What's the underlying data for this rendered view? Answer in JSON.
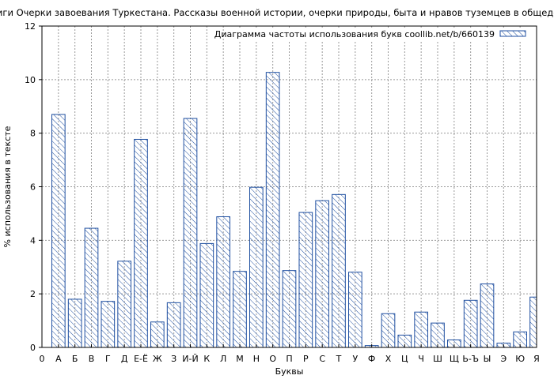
{
  "chart_data": {
    "type": "bar",
    "title": "Анализ текста книги Очерки завоевания Туркестана. Рассказы военной истории, очерки природы, быта и нравов туземцев в общедоступном изложении (Констант",
    "xlabel": "Буквы",
    "ylabel": "% использования в тексте",
    "ylim": [
      0,
      12
    ],
    "yticks": [
      "0",
      "2",
      "4",
      "6",
      "8",
      "10",
      "12"
    ],
    "x_origin_label": "0",
    "categories": [
      "А",
      "Б",
      "В",
      "Г",
      "Д",
      "Е-Ё",
      "Ж",
      "З",
      "И-Й",
      "К",
      "Л",
      "М",
      "Н",
      "О",
      "П",
      "Р",
      "С",
      "Т",
      "У",
      "Ф",
      "Х",
      "Ц",
      "Ч",
      "Ш",
      "Щ",
      "Ь-Ъ",
      "Ы",
      "Э",
      "Ю",
      "Я"
    ],
    "values": [
      8.7,
      1.8,
      4.45,
      1.72,
      3.22,
      7.77,
      0.95,
      1.67,
      8.55,
      3.88,
      4.88,
      2.84,
      5.98,
      10.27,
      2.87,
      5.04,
      5.48,
      5.71,
      2.81,
      0.07,
      1.26,
      0.46,
      1.32,
      0.91,
      0.28,
      1.76,
      2.37,
      0.16,
      0.58,
      1.88
    ],
    "grid": true,
    "legend": {
      "position": "top-right",
      "label": "Диаграмма частоты использования букв coollib.net/b/660139"
    },
    "colors": {
      "bar_stroke": "#1f4fa0",
      "hatch": "#1f4fa0",
      "grid": "#999999"
    }
  }
}
